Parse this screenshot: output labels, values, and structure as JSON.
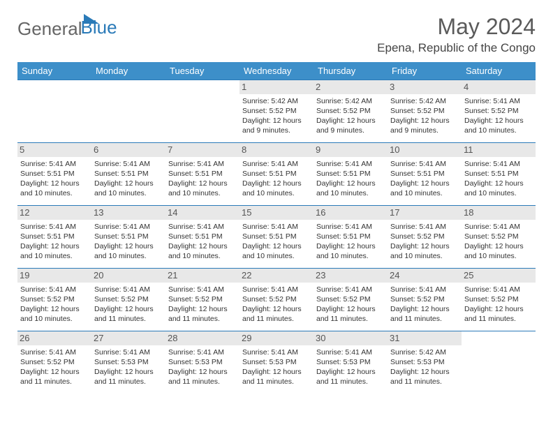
{
  "logo": {
    "text1": "General",
    "text2": "Blue"
  },
  "title": "May 2024",
  "location": "Epena, Republic of the Congo",
  "colors": {
    "header_bg": "#3d8fc9",
    "border": "#2a7ab8",
    "daynum_bg": "#e8e8e8",
    "logo_gray": "#666666",
    "logo_blue": "#2a7ab8"
  },
  "weekdays": [
    "Sunday",
    "Monday",
    "Tuesday",
    "Wednesday",
    "Thursday",
    "Friday",
    "Saturday"
  ],
  "weeks": [
    [
      null,
      null,
      null,
      {
        "day": "1",
        "sunrise": "5:42 AM",
        "sunset": "5:52 PM",
        "daylight": "12 hours and 9 minutes."
      },
      {
        "day": "2",
        "sunrise": "5:42 AM",
        "sunset": "5:52 PM",
        "daylight": "12 hours and 9 minutes."
      },
      {
        "day": "3",
        "sunrise": "5:42 AM",
        "sunset": "5:52 PM",
        "daylight": "12 hours and 9 minutes."
      },
      {
        "day": "4",
        "sunrise": "5:41 AM",
        "sunset": "5:52 PM",
        "daylight": "12 hours and 10 minutes."
      }
    ],
    [
      {
        "day": "5",
        "sunrise": "5:41 AM",
        "sunset": "5:51 PM",
        "daylight": "12 hours and 10 minutes."
      },
      {
        "day": "6",
        "sunrise": "5:41 AM",
        "sunset": "5:51 PM",
        "daylight": "12 hours and 10 minutes."
      },
      {
        "day": "7",
        "sunrise": "5:41 AM",
        "sunset": "5:51 PM",
        "daylight": "12 hours and 10 minutes."
      },
      {
        "day": "8",
        "sunrise": "5:41 AM",
        "sunset": "5:51 PM",
        "daylight": "12 hours and 10 minutes."
      },
      {
        "day": "9",
        "sunrise": "5:41 AM",
        "sunset": "5:51 PM",
        "daylight": "12 hours and 10 minutes."
      },
      {
        "day": "10",
        "sunrise": "5:41 AM",
        "sunset": "5:51 PM",
        "daylight": "12 hours and 10 minutes."
      },
      {
        "day": "11",
        "sunrise": "5:41 AM",
        "sunset": "5:51 PM",
        "daylight": "12 hours and 10 minutes."
      }
    ],
    [
      {
        "day": "12",
        "sunrise": "5:41 AM",
        "sunset": "5:51 PM",
        "daylight": "12 hours and 10 minutes."
      },
      {
        "day": "13",
        "sunrise": "5:41 AM",
        "sunset": "5:51 PM",
        "daylight": "12 hours and 10 minutes."
      },
      {
        "day": "14",
        "sunrise": "5:41 AM",
        "sunset": "5:51 PM",
        "daylight": "12 hours and 10 minutes."
      },
      {
        "day": "15",
        "sunrise": "5:41 AM",
        "sunset": "5:51 PM",
        "daylight": "12 hours and 10 minutes."
      },
      {
        "day": "16",
        "sunrise": "5:41 AM",
        "sunset": "5:51 PM",
        "daylight": "12 hours and 10 minutes."
      },
      {
        "day": "17",
        "sunrise": "5:41 AM",
        "sunset": "5:52 PM",
        "daylight": "12 hours and 10 minutes."
      },
      {
        "day": "18",
        "sunrise": "5:41 AM",
        "sunset": "5:52 PM",
        "daylight": "12 hours and 10 minutes."
      }
    ],
    [
      {
        "day": "19",
        "sunrise": "5:41 AM",
        "sunset": "5:52 PM",
        "daylight": "12 hours and 10 minutes."
      },
      {
        "day": "20",
        "sunrise": "5:41 AM",
        "sunset": "5:52 PM",
        "daylight": "12 hours and 11 minutes."
      },
      {
        "day": "21",
        "sunrise": "5:41 AM",
        "sunset": "5:52 PM",
        "daylight": "12 hours and 11 minutes."
      },
      {
        "day": "22",
        "sunrise": "5:41 AM",
        "sunset": "5:52 PM",
        "daylight": "12 hours and 11 minutes."
      },
      {
        "day": "23",
        "sunrise": "5:41 AM",
        "sunset": "5:52 PM",
        "daylight": "12 hours and 11 minutes."
      },
      {
        "day": "24",
        "sunrise": "5:41 AM",
        "sunset": "5:52 PM",
        "daylight": "12 hours and 11 minutes."
      },
      {
        "day": "25",
        "sunrise": "5:41 AM",
        "sunset": "5:52 PM",
        "daylight": "12 hours and 11 minutes."
      }
    ],
    [
      {
        "day": "26",
        "sunrise": "5:41 AM",
        "sunset": "5:52 PM",
        "daylight": "12 hours and 11 minutes."
      },
      {
        "day": "27",
        "sunrise": "5:41 AM",
        "sunset": "5:53 PM",
        "daylight": "12 hours and 11 minutes."
      },
      {
        "day": "28",
        "sunrise": "5:41 AM",
        "sunset": "5:53 PM",
        "daylight": "12 hours and 11 minutes."
      },
      {
        "day": "29",
        "sunrise": "5:41 AM",
        "sunset": "5:53 PM",
        "daylight": "12 hours and 11 minutes."
      },
      {
        "day": "30",
        "sunrise": "5:41 AM",
        "sunset": "5:53 PM",
        "daylight": "12 hours and 11 minutes."
      },
      {
        "day": "31",
        "sunrise": "5:42 AM",
        "sunset": "5:53 PM",
        "daylight": "12 hours and 11 minutes."
      },
      null
    ]
  ],
  "labels": {
    "sunrise": "Sunrise:",
    "sunset": "Sunset:",
    "daylight": "Daylight:"
  }
}
